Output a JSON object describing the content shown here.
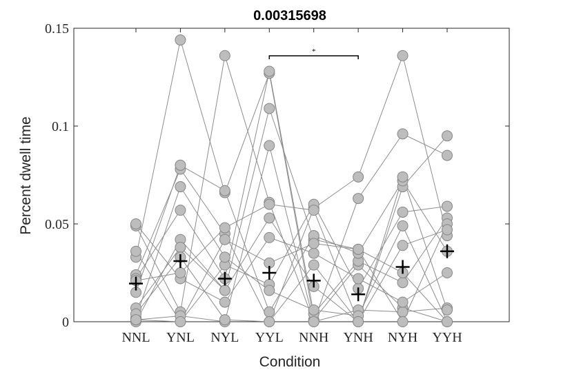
{
  "chart_data": {
    "type": "scatter",
    "title": "0.00315698",
    "xlabel": "Condition",
    "ylabel": "Percent dwell time",
    "categories": [
      "NNL",
      "YNL",
      "NYL",
      "YYL",
      "NNH",
      "YNH",
      "NYH",
      "YYH"
    ],
    "ylim": [
      0,
      0.15
    ],
    "yticks": [
      {
        "value": 0,
        "label": "0"
      },
      {
        "value": 0.05,
        "label": "0.05"
      },
      {
        "value": 0.1,
        "label": "0.1"
      },
      {
        "value": 0.15,
        "label": "0.15"
      }
    ],
    "grid": false,
    "means": [
      0.0195,
      0.031,
      0.022,
      0.025,
      0.021,
      0.014,
      0.028,
      0.036
    ],
    "subjects": [
      [
        0.033,
        0.144,
        0.066,
        0.127,
        0.001,
        0.029,
        0.007,
        0.0
      ],
      [
        0.049,
        0.005,
        0.136,
        0.061,
        0.0,
        0.006,
        0.005,
        0.007
      ],
      [
        0.024,
        0.078,
        0.045,
        0.0,
        0.058,
        0.074,
        0.136,
        0.044
      ],
      [
        0.022,
        0.057,
        0.022,
        0.128,
        0.004,
        0.031,
        0.02,
        0.053
      ],
      [
        0.0,
        0.042,
        0.016,
        0.109,
        0.042,
        0.037,
        0.0,
        0.05
      ],
      [
        0.036,
        0.0,
        0.029,
        0.019,
        0.06,
        0.017,
        0.056,
        0.059
      ],
      [
        0.001,
        0.003,
        0.0,
        0.09,
        0.0,
        0.063,
        0.096,
        0.085
      ],
      [
        0.007,
        0.038,
        0.016,
        0.053,
        0.018,
        0.0,
        0.069,
        0.095
      ],
      [
        0.05,
        0.022,
        0.01,
        0.043,
        0.035,
        0.022,
        0.01,
        0.025
      ],
      [
        0.015,
        0.08,
        0.067,
        0.005,
        0.044,
        0.035,
        0.072,
        0.036
      ],
      [
        0.002,
        0.069,
        0.033,
        0.016,
        0.006,
        0.003,
        0.049,
        0.0
      ],
      [
        0.004,
        0.033,
        0.001,
        0.0,
        0.029,
        0.0,
        0.039,
        0.047
      ],
      [
        0.021,
        0.025,
        0.048,
        0.06,
        0.057,
        0.0,
        0.074,
        0.006
      ],
      [
        0.001,
        0.0,
        0.042,
        0.03,
        0.04,
        0.037,
        0.025,
        0.0
      ]
    ],
    "significance": [
      {
        "from": "YYL",
        "to": "YNH",
        "label": "*"
      }
    ],
    "colors": {
      "marker_fill": "#bdbdbd",
      "marker_edge": "#858585",
      "line": "#8c8c8c",
      "mean_marker": "#000000",
      "axis": "#262626"
    }
  }
}
